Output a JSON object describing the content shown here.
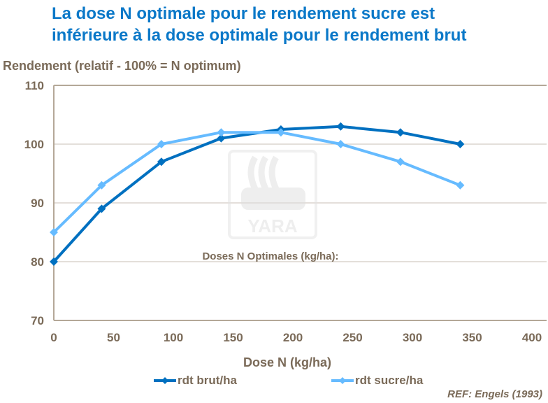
{
  "title_line1": "La dose N optimale pour le rendement sucre est",
  "title_line2": "inférieure à la dose optimale pour le rendement brut",
  "reference": "REF: Engels (1993)",
  "annotation": "Doses N Optimales  (kg/ha):",
  "watermark": "YARA",
  "chart_data": {
    "type": "line",
    "xlabel": "Dose N (kg/ha)",
    "ylabel": "Rendement (relatif -  100% = N optimum)",
    "xlim": [
      0,
      400
    ],
    "ylim": [
      70,
      110
    ],
    "xticks": [
      0,
      50,
      100,
      150,
      200,
      250,
      300,
      350,
      400
    ],
    "yticks": [
      70,
      80,
      90,
      100,
      110
    ],
    "grid": "horizontal",
    "legend": "bottom",
    "x": [
      0,
      40,
      90,
      140,
      190,
      240,
      290,
      340
    ],
    "series": [
      {
        "name": "rdt brut/ha",
        "color": "#0070c0",
        "values": [
          80,
          89,
          97,
          101,
          102.5,
          103,
          102,
          100
        ]
      },
      {
        "name": "rdt sucre/ha",
        "color": "#66bbff",
        "values": [
          85,
          93,
          100,
          102,
          102,
          100,
          97,
          93
        ]
      }
    ]
  }
}
